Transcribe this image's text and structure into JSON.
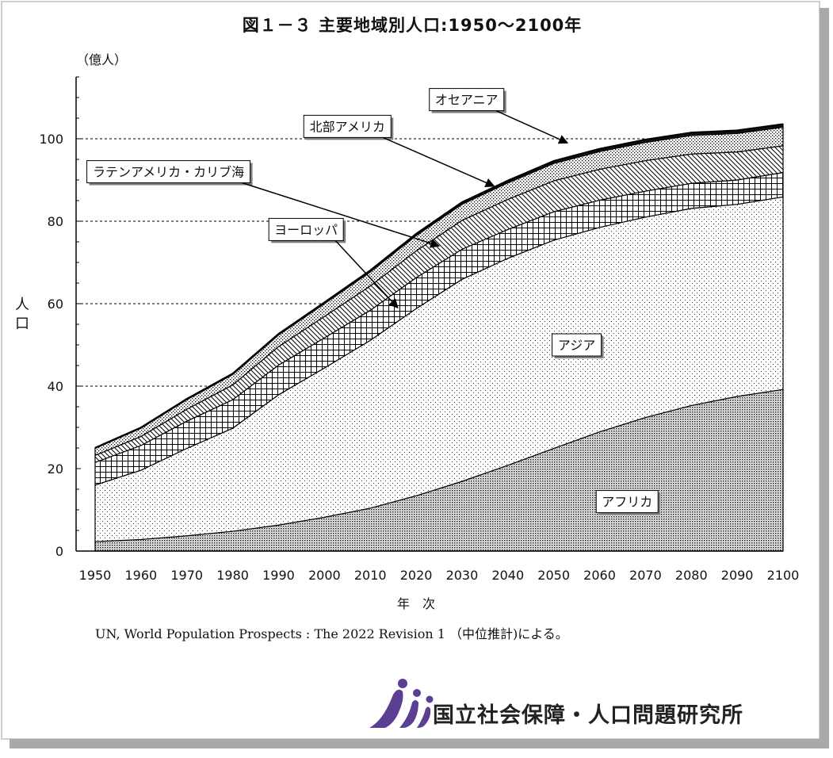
{
  "title": "図１－３ 主要地域別人口:1950～2100年",
  "source": "UN, World Population Prospects : The 2022 Revision 1 （中位推計)による。",
  "footer_org": "国立社会保障・人口問題研究所",
  "colors": {
    "outline": "#000000",
    "gridline": "#000000",
    "frame_shadow": "#9a9a9a"
  },
  "chart_data": {
    "type": "area",
    "stacked": true,
    "ylabel": "人口",
    "yunit": "（億人）",
    "xlabel": "年　次",
    "xlim": [
      1950,
      2100
    ],
    "ylim": [
      0,
      115
    ],
    "yticks": [
      0,
      20,
      40,
      60,
      80,
      100
    ],
    "xticks": [
      1950,
      1960,
      1970,
      1980,
      1990,
      2000,
      2010,
      2020,
      2030,
      2040,
      2050,
      2060,
      2070,
      2080,
      2090,
      2100
    ],
    "grid": "dashed at 40, 60, 80, 100",
    "x": [
      1950,
      1960,
      1970,
      1980,
      1990,
      2000,
      2010,
      2020,
      2030,
      2040,
      2050,
      2060,
      2070,
      2080,
      2090,
      2100
    ],
    "series": [
      {
        "name": "アフリカ",
        "pattern": "fine-dots",
        "label_year": 2066,
        "label_value": 12,
        "values": [
          2.3,
          2.8,
          3.7,
          4.8,
          6.3,
          8.2,
          10.4,
          13.4,
          16.9,
          20.8,
          24.9,
          28.9,
          32.4,
          35.3,
          37.5,
          39.2
        ]
      },
      {
        "name": "アジア",
        "pattern": "sparse-dots",
        "label_year": 2055,
        "label_value": 50,
        "values": [
          13.7,
          16.8,
          21.2,
          25.0,
          31.6,
          36.2,
          40.7,
          45.4,
          49.0,
          50.2,
          50.5,
          49.6,
          48.6,
          47.8,
          46.6,
          46.7
        ]
      },
      {
        "name": "ヨーロッパ",
        "pattern": "crosshatch",
        "callout_year": 1996,
        "callout_value": 78,
        "arrow_year": 2016,
        "arrow_value": 59,
        "values": [
          5.5,
          6.0,
          6.6,
          6.9,
          7.2,
          7.3,
          7.3,
          7.5,
          7.3,
          7.0,
          6.9,
          6.6,
          6.3,
          6.1,
          5.9,
          5.9
        ]
      },
      {
        "name": "ラテンアメリカ・カリブ海",
        "pattern": "diagonal",
        "callout_year": 1966,
        "callout_value": 92,
        "arrow_year": 2025,
        "arrow_value": 74,
        "values": [
          1.7,
          2.2,
          2.9,
          3.6,
          4.5,
          5.2,
          5.9,
          6.5,
          7.0,
          7.3,
          7.5,
          7.5,
          7.4,
          7.1,
          6.8,
          6.5
        ]
      },
      {
        "name": "北部アメリカ",
        "pattern": "medium-dots",
        "callout_year": 2005,
        "callout_value": 103,
        "arrow_year": 2037,
        "arrow_value": 88.5,
        "values": [
          1.7,
          2.0,
          2.3,
          2.5,
          2.8,
          3.1,
          3.4,
          3.7,
          3.9,
          4.0,
          4.2,
          4.3,
          4.4,
          4.5,
          4.5,
          4.5
        ]
      },
      {
        "name": "オセアニア",
        "pattern": "solid",
        "callout_year": 2031,
        "callout_value": 109.5,
        "arrow_year": 2053,
        "arrow_value": 99,
        "values": [
          0.13,
          0.16,
          0.2,
          0.23,
          0.27,
          0.31,
          0.37,
          0.44,
          0.5,
          0.55,
          0.6,
          0.65,
          0.68,
          0.7,
          0.72,
          0.74
        ]
      }
    ]
  }
}
